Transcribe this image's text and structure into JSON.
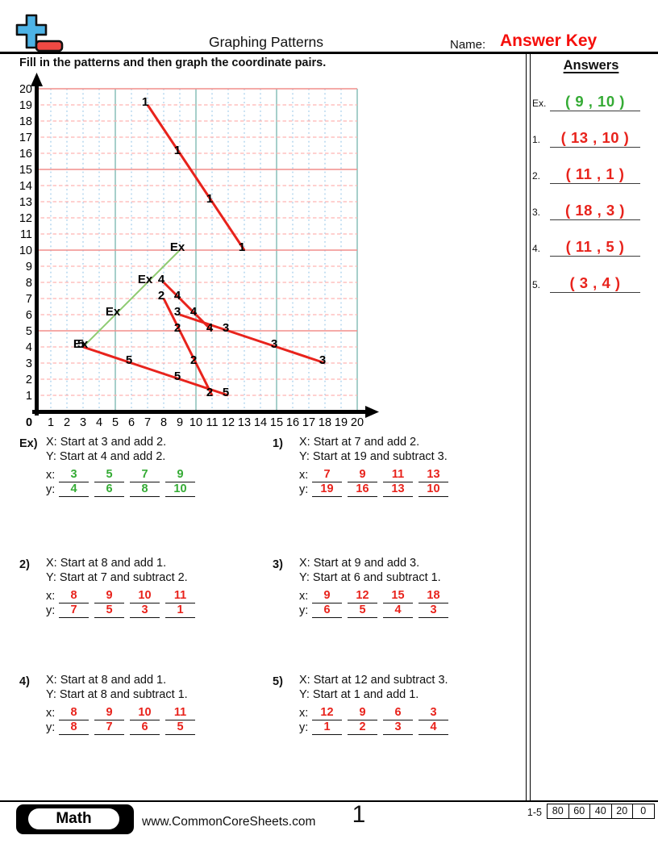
{
  "header": {
    "title": "Graphing Patterns",
    "name_label": "Name:",
    "name_value": "Answer Key",
    "accent_red": "#f50f0c"
  },
  "logo": {
    "icon": "plus-minus-icon",
    "plus_color": "#4db3e6",
    "minus_color": "#f04943"
  },
  "instruction": "Fill in the patterns and then graph the coordinate pairs.",
  "answers": {
    "title": "Answers",
    "items": [
      {
        "label": "Ex.",
        "value": "( 9 , 10 )",
        "color": "#35ab35"
      },
      {
        "label": "1.",
        "value": "( 13 , 10 )",
        "color": "#e8231c"
      },
      {
        "label": "2.",
        "value": "( 11 , 1 )",
        "color": "#e8231c"
      },
      {
        "label": "3.",
        "value": "( 18 , 3 )",
        "color": "#e8231c"
      },
      {
        "label": "4.",
        "value": "( 11 , 5 )",
        "color": "#e8231c"
      },
      {
        "label": "5.",
        "value": "( 3 , 4 )",
        "color": "#e8231c"
      }
    ]
  },
  "chart_data": {
    "type": "line",
    "title": "",
    "xlabel": "",
    "ylabel": "",
    "xlim": [
      0,
      20
    ],
    "ylim": [
      0,
      20
    ],
    "grid": "on",
    "origin_label": "0",
    "x_ticks": [
      1,
      2,
      3,
      4,
      5,
      6,
      7,
      8,
      9,
      10,
      11,
      12,
      13,
      14,
      15,
      16,
      17,
      18,
      19,
      20
    ],
    "y_ticks": [
      1,
      2,
      3,
      4,
      5,
      6,
      7,
      8,
      9,
      10,
      11,
      12,
      13,
      14,
      15,
      16,
      17,
      18,
      19,
      20
    ],
    "grid_colors": {
      "minor_v": "#b5d7ee",
      "major_v": "#a6cfca",
      "minor_h": "#ffb4b2",
      "major_h": "#f28d8b"
    },
    "series": [
      {
        "name": "Ex",
        "label": "Ex",
        "color": "#8fcb72",
        "width": 2,
        "points": [
          [
            3,
            4
          ],
          [
            5,
            6
          ],
          [
            7,
            8
          ],
          [
            9,
            10
          ]
        ]
      },
      {
        "name": "1",
        "label": "1",
        "color": "#e8231c",
        "width": 3,
        "points": [
          [
            7,
            19
          ],
          [
            9,
            16
          ],
          [
            11,
            13
          ],
          [
            13,
            10
          ]
        ]
      },
      {
        "name": "2",
        "label": "2",
        "color": "#e8231c",
        "width": 3,
        "points": [
          [
            8,
            7
          ],
          [
            9,
            5
          ],
          [
            10,
            3
          ],
          [
            11,
            1
          ]
        ]
      },
      {
        "name": "3",
        "label": "3",
        "color": "#e8231c",
        "width": 3,
        "points": [
          [
            9,
            6
          ],
          [
            12,
            5
          ],
          [
            15,
            4
          ],
          [
            18,
            3
          ]
        ]
      },
      {
        "name": "4",
        "label": "4",
        "color": "#e8231c",
        "width": 3,
        "points": [
          [
            8,
            8
          ],
          [
            9,
            7
          ],
          [
            10,
            6
          ],
          [
            11,
            5
          ]
        ]
      },
      {
        "name": "5",
        "label": "5",
        "color": "#e8231c",
        "width": 3,
        "points": [
          [
            12,
            1
          ],
          [
            9,
            2
          ],
          [
            6,
            3
          ],
          [
            3,
            4
          ]
        ]
      }
    ]
  },
  "problems": [
    {
      "num": "Ex)",
      "rule_x": "X: Start at 3 and add 2.",
      "rule_y": "Y: Start at 4 and add 2.",
      "x_label": "x:",
      "y_label": "y:",
      "x_values": [
        "3",
        "5",
        "7",
        "9"
      ],
      "y_values": [
        "4",
        "6",
        "8",
        "10"
      ],
      "color": "#35ab35"
    },
    {
      "num": "1)",
      "rule_x": "X: Start at 7 and add 2.",
      "rule_y": "Y: Start at 19 and subtract 3.",
      "x_label": "x:",
      "y_label": "y:",
      "x_values": [
        "7",
        "9",
        "11",
        "13"
      ],
      "y_values": [
        "19",
        "16",
        "13",
        "10"
      ],
      "color": "#e8231c"
    },
    {
      "num": "2)",
      "rule_x": "X: Start at 8 and add 1.",
      "rule_y": "Y: Start at 7 and subtract 2.",
      "x_label": "x:",
      "y_label": "y:",
      "x_values": [
        "8",
        "9",
        "10",
        "11"
      ],
      "y_values": [
        "7",
        "5",
        "3",
        "1"
      ],
      "color": "#e8231c"
    },
    {
      "num": "3)",
      "rule_x": "X: Start at 9 and add 3.",
      "rule_y": "Y: Start at 6 and subtract 1.",
      "x_label": "x:",
      "y_label": "y:",
      "x_values": [
        "9",
        "12",
        "15",
        "18"
      ],
      "y_values": [
        "6",
        "5",
        "4",
        "3"
      ],
      "color": "#e8231c"
    },
    {
      "num": "4)",
      "rule_x": "X: Start at 8 and add 1.",
      "rule_y": "Y: Start at 8 and subtract 1.",
      "x_label": "x:",
      "y_label": "y:",
      "x_values": [
        "8",
        "9",
        "10",
        "11"
      ],
      "y_values": [
        "8",
        "7",
        "6",
        "5"
      ],
      "color": "#e8231c"
    },
    {
      "num": "5)",
      "rule_x": "X: Start at 12 and subtract 3.",
      "rule_y": "Y: Start at 1 and add 1.",
      "x_label": "x:",
      "y_label": "y:",
      "x_values": [
        "12",
        "9",
        "6",
        "3"
      ],
      "y_values": [
        "1",
        "2",
        "3",
        "4"
      ],
      "color": "#e8231c"
    }
  ],
  "footer": {
    "subject": "Math",
    "website": "www.CommonCoreSheets.com",
    "page": "1",
    "score_label": "1-5",
    "scores": [
      "80",
      "60",
      "40",
      "20",
      "0"
    ]
  }
}
